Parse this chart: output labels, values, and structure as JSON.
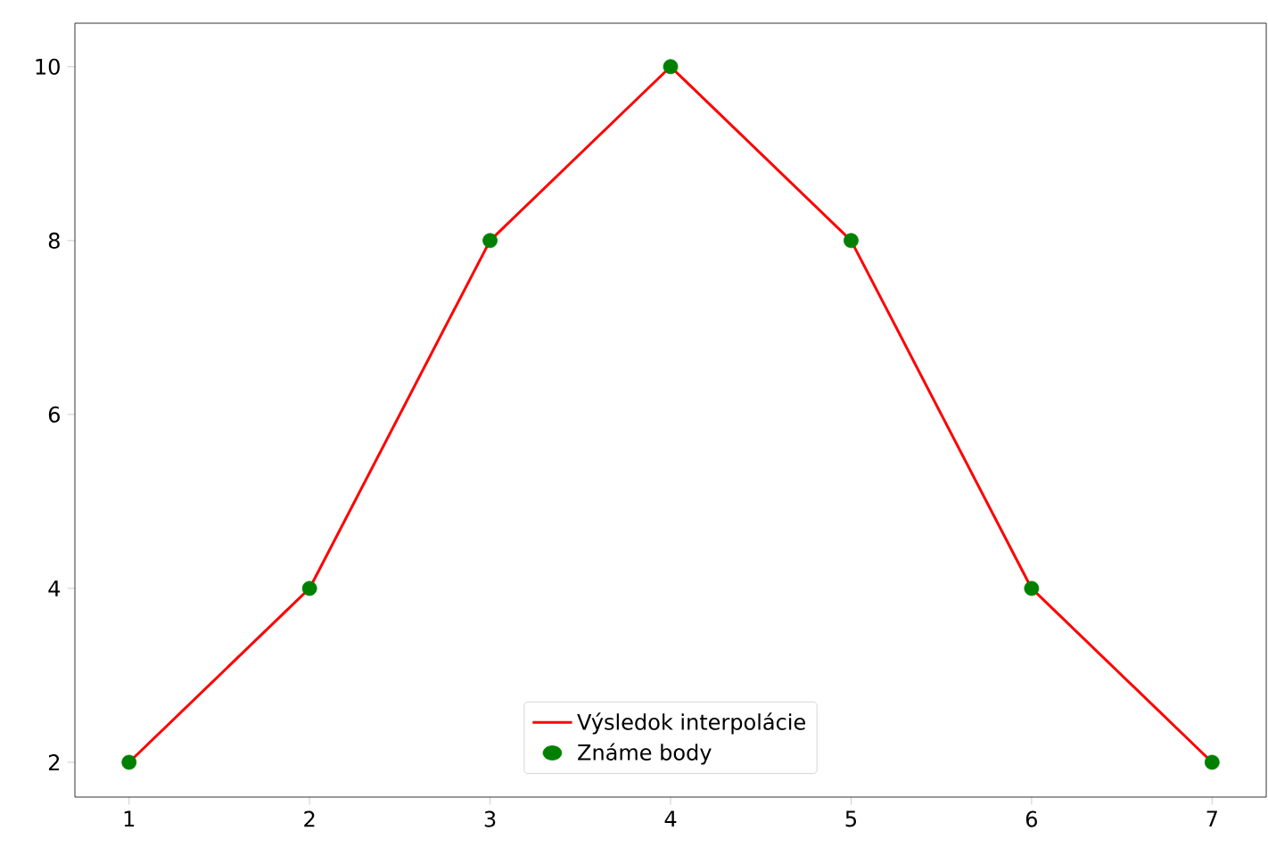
{
  "chart_data": {
    "type": "line",
    "x": [
      1,
      2,
      3,
      4,
      5,
      6,
      7
    ],
    "series": [
      {
        "name": "Výsledok interpolácie",
        "color": "#ff0000",
        "values": [
          2,
          4,
          8,
          10,
          8,
          4,
          2
        ],
        "marker": "none"
      },
      {
        "name": "Známe body",
        "type": "scatter",
        "color": "#008000",
        "values": [
          2,
          4,
          8,
          10,
          8,
          4,
          2
        ],
        "marker": "circle"
      }
    ],
    "xlim": [
      0.7,
      7.3
    ],
    "ylim": [
      1.6,
      10.5
    ],
    "xticks": [
      1,
      2,
      3,
      4,
      5,
      6,
      7
    ],
    "yticks": [
      2,
      4,
      6,
      8,
      10
    ],
    "legend": "bottom"
  }
}
